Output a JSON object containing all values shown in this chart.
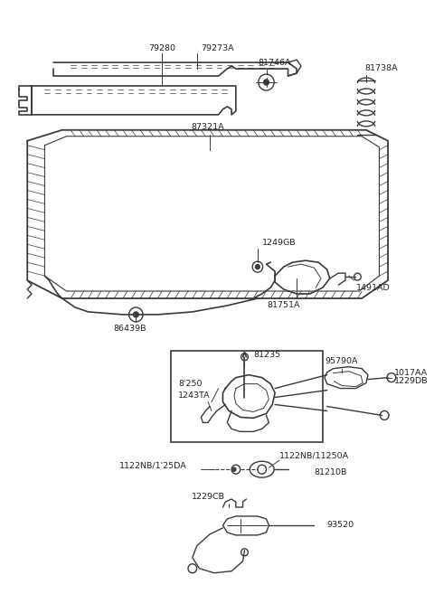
{
  "bg_color": "#ffffff",
  "line_color": "#3a3a3a",
  "text_color": "#222222",
  "fig_width": 4.8,
  "fig_height": 6.57,
  "dpi": 100,
  "xlim": [
    0,
    480
  ],
  "ylim": [
    0,
    657
  ]
}
